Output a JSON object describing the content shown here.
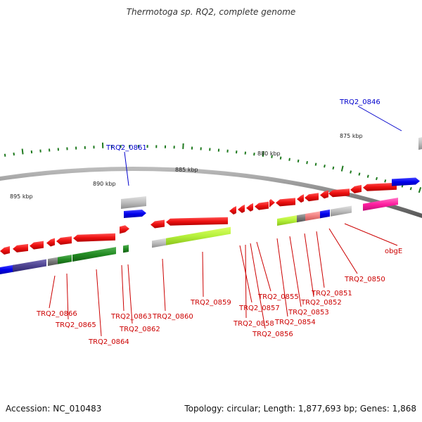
{
  "header": {
    "title": "Thermotoga sp. RQ2, complete genome"
  },
  "footer": {
    "accession": "Accession: NC_010483",
    "summary": "Topology: circular; Length: 1,877,693 bp; Genes: 1,868"
  },
  "colors": {
    "backbone": "#8a8a8a",
    "tick": "#1f7a1f",
    "gene_label": "#cc0000",
    "highlight_label": "#0000cc",
    "gene_red": "#ee1111"
  },
  "scale_labels": [
    "895 kbp",
    "890 kbp",
    "885 kbp",
    "880 kbp",
    "875 kbp"
  ],
  "highlighted_genes": [
    "TRQ2_0861",
    "TRQ2_0846"
  ],
  "gene_labels": [
    "TRQ2_0866",
    "TRQ2_0865",
    "TRQ2_0864",
    "TRQ2_0863",
    "TRQ2_0862",
    "TRQ2_0860",
    "TRQ2_0859",
    "TRQ2_0858",
    "TRQ2_0857",
    "TRQ2_0856",
    "TRQ2_0855",
    "TRQ2_0854",
    "TRQ2_0853",
    "TRQ2_0852",
    "TRQ2_0851",
    "TRQ2_0850",
    "obgE"
  ]
}
